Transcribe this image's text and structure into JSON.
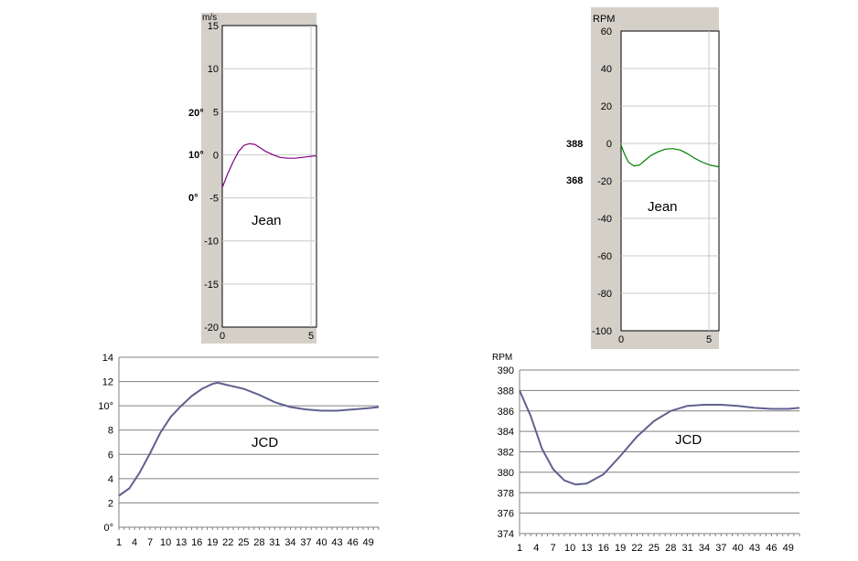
{
  "chart_data": [
    {
      "id": "top-left",
      "type": "line",
      "ylabel": "m/s",
      "ylim": [
        -20,
        15
      ],
      "yticks": [
        "15",
        "10",
        "5",
        "0",
        "-5",
        "-10",
        "-15",
        "-20"
      ],
      "xlim": [
        0,
        5.2
      ],
      "xticks": [
        "0",
        "5"
      ],
      "side_labels": [
        "20°",
        "10°",
        "0°"
      ],
      "annotation": "Jean",
      "series": [
        {
          "color": "#800080",
          "x": [
            0,
            0.3,
            0.6,
            0.9,
            1.2,
            1.5,
            1.8,
            2.1,
            2.4,
            2.8,
            3.2,
            3.6,
            4.0,
            4.4,
            4.8,
            5.2
          ],
          "y": [
            -3.8,
            -2.2,
            -0.8,
            0.4,
            1.1,
            1.3,
            1.2,
            0.8,
            0.4,
            0.0,
            -0.3,
            -0.4,
            -0.4,
            -0.3,
            -0.2,
            -0.1
          ]
        }
      ],
      "grid": true
    },
    {
      "id": "top-right",
      "type": "line",
      "ylabel": "RPM",
      "ylim": [
        -100,
        60
      ],
      "yticks": [
        "60",
        "40",
        "20",
        "0",
        "-20",
        "-40",
        "-60",
        "-80",
        "-100"
      ],
      "xlim": [
        0,
        5.3
      ],
      "xticks": [
        "0",
        "5"
      ],
      "side_labels": [
        "388",
        "368"
      ],
      "annotation": "Jean",
      "series": [
        {
          "color": "#008000",
          "x": [
            0,
            0.2,
            0.4,
            0.7,
            1.0,
            1.3,
            1.6,
            2.0,
            2.4,
            2.8,
            3.2,
            3.6,
            4.0,
            4.4,
            4.8,
            5.3
          ],
          "y": [
            -1,
            -6,
            -10,
            -12,
            -11.5,
            -9,
            -6.5,
            -4.5,
            -3,
            -2.8,
            -3.5,
            -5.5,
            -8,
            -10,
            -11.5,
            -12.5
          ]
        }
      ],
      "grid": true
    },
    {
      "id": "bottom-left",
      "type": "line",
      "ylim": [
        0,
        14
      ],
      "yticks": [
        "14",
        "12",
        "10°",
        "8",
        "6",
        "4",
        "2",
        "0°"
      ],
      "xticks": [
        "1",
        "4",
        "7",
        "10",
        "13",
        "16",
        "19",
        "22",
        "25",
        "28",
        "31",
        "34",
        "37",
        "40",
        "43",
        "46",
        "49"
      ],
      "annotation": "JCD",
      "series": [
        {
          "color": "#606090",
          "x": [
            1,
            3,
            5,
            7,
            9,
            11,
            13,
            15,
            17,
            19,
            20,
            22,
            25,
            28,
            31,
            34,
            37,
            40,
            43,
            46,
            49,
            51
          ],
          "y": [
            2.6,
            3.2,
            4.5,
            6.1,
            7.8,
            9.1,
            10.0,
            10.8,
            11.4,
            11.8,
            11.9,
            11.7,
            11.4,
            10.9,
            10.3,
            9.9,
            9.7,
            9.6,
            9.6,
            9.7,
            9.8,
            9.9
          ]
        }
      ],
      "grid": true
    },
    {
      "id": "bottom-right",
      "type": "line",
      "ylabel": "RPM",
      "ylim": [
        374,
        390
      ],
      "yticks": [
        "390",
        "388",
        "386",
        "384",
        "382",
        "380",
        "378",
        "376",
        "374"
      ],
      "xticks": [
        "1",
        "4",
        "7",
        "10",
        "13",
        "16",
        "19",
        "22",
        "25",
        "28",
        "31",
        "34",
        "37",
        "40",
        "43",
        "46",
        "49"
      ],
      "annotation": "JCD",
      "series": [
        {
          "color": "#606090",
          "x": [
            1,
            3,
            5,
            7,
            9,
            11,
            13,
            16,
            19,
            22,
            25,
            28,
            31,
            34,
            37,
            40,
            43,
            46,
            49,
            51
          ],
          "y": [
            388.0,
            385.5,
            382.3,
            380.3,
            379.2,
            378.8,
            378.9,
            379.8,
            381.6,
            383.5,
            385.0,
            386.0,
            386.5,
            386.6,
            386.6,
            386.5,
            386.3,
            386.2,
            386.2,
            386.3
          ]
        }
      ],
      "grid": true
    }
  ]
}
